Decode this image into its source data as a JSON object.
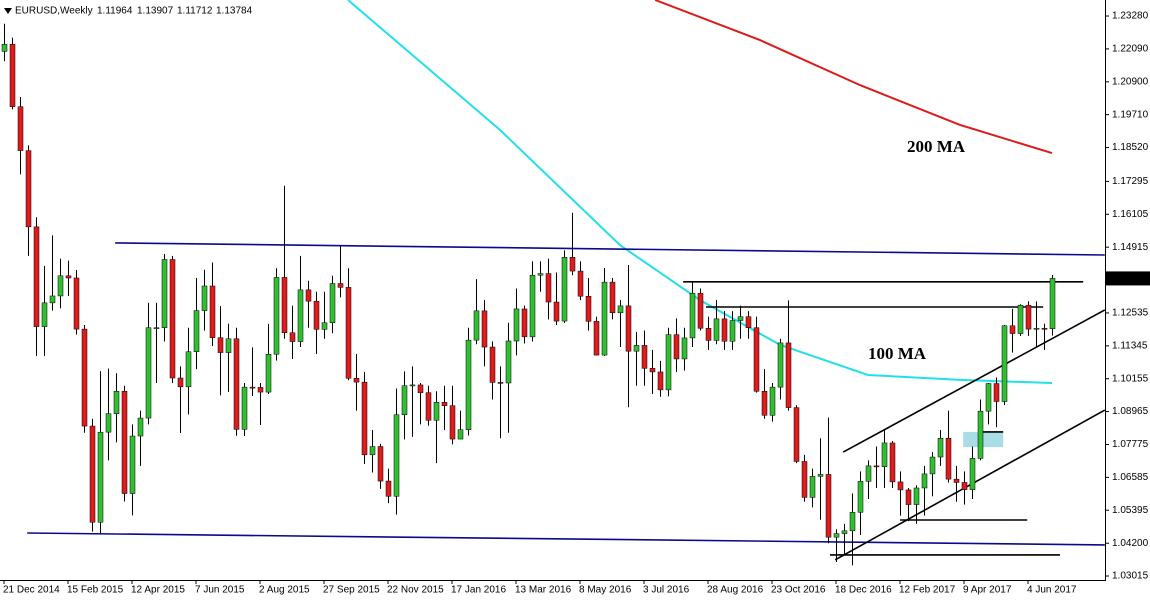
{
  "chart_data": {
    "type": "candlestick",
    "title": "EURUSD,Weekly",
    "up_color": "#2fbf2f",
    "down_color": "#e01b1b",
    "wick_color": "#000000",
    "categories": [
      "21 Dec 2014",
      null,
      null,
      null,
      null,
      null,
      null,
      null,
      "15 Feb 2015",
      null,
      null,
      null,
      null,
      null,
      null,
      null,
      "12 Apr 2015",
      null,
      null,
      null,
      null,
      null,
      null,
      null,
      "7 Jun 2015",
      null,
      null,
      null,
      null,
      null,
      null,
      null,
      "2 Aug 2015",
      null,
      null,
      null,
      null,
      null,
      null,
      null,
      "27 Sep 2015",
      null,
      null,
      null,
      null,
      null,
      null,
      null,
      "22 Nov 2015",
      null,
      null,
      null,
      null,
      null,
      null,
      null,
      "17 Jan 2016",
      null,
      null,
      null,
      null,
      null,
      null,
      null,
      "13 Mar 2016",
      null,
      null,
      null,
      null,
      null,
      null,
      null,
      "8 May 2016",
      null,
      null,
      null,
      null,
      null,
      null,
      null,
      "3 Jul 2016",
      null,
      null,
      null,
      null,
      null,
      null,
      null,
      "28 Aug 2016",
      null,
      null,
      null,
      null,
      null,
      null,
      null,
      "23 Oct 2016",
      null,
      null,
      null,
      null,
      null,
      null,
      null,
      "18 Dec 2016",
      null,
      null,
      null,
      null,
      null,
      null,
      null,
      "12 Feb 2017",
      null,
      null,
      null,
      null,
      null,
      null,
      null,
      "9 Apr 2017",
      null,
      null,
      null,
      null,
      null,
      null,
      null,
      "4 Jun 2017",
      null,
      null,
      null
    ],
    "open": [
      1.22,
      1.2226,
      1.2,
      1.1841,
      1.1565,
      1.1204,
      1.129,
      1.1315,
      1.1388,
      1.138,
      1.1195,
      1.0844,
      1.0496,
      1.0822,
      1.0889,
      1.097,
      1.06,
      1.0808,
      1.0873,
      1.12,
      1.12,
      1.1447,
      1.1018,
      1.0986,
      1.1113,
      1.1262,
      1.1351,
      1.1164,
      1.111,
      1.116,
      1.0832,
      1.0985,
      1.0984,
      1.0967,
      1.1104,
      1.1382,
      1.1182,
      1.115,
      1.1337,
      1.1296,
      1.1194,
      1.1218,
      1.136,
      1.1346,
      1.1017,
      1.1003,
      1.074,
      1.077,
      1.0645,
      1.059,
      1.0885,
      1.099,
      1.0993,
      1.0965,
      1.0865,
      1.093,
      1.0918,
      1.0797,
      1.0831,
      1.1155,
      1.1261,
      1.113,
      1.1002,
      1.1,
      1.1152,
      1.1268,
      1.1167,
      1.139,
      1.1396,
      1.1293,
      1.1224,
      1.1455,
      1.1405,
      1.1314,
      1.1223,
      1.1101,
      1.1365,
      1.1254,
      1.1279,
      1.1115,
      1.1136,
      1.1053,
      1.104,
      1.0975,
      1.1175,
      1.1087,
      1.1163,
      1.1325,
      1.1198,
      1.1154,
      1.1232,
      1.1151,
      1.1226,
      1.124,
      1.12,
      1.097,
      1.0883,
      1.0985,
      1.1145,
      1.0911,
      1.0716,
      1.0586,
      1.0662,
      1.0669,
      1.0442,
      1.0455,
      1.0465,
      1.0532,
      1.0644,
      1.07,
      1.0697,
      1.0783,
      1.0642,
      1.0613,
      1.056,
      1.062,
      1.0671,
      1.0732,
      1.08,
      1.0652,
      1.064,
      1.0614,
      1.0727,
      1.0898,
      1.0998,
      1.0933,
      1.1207,
      1.1179,
      1.1281,
      1.1195,
      1.1198,
      1.11964
    ],
    "high": [
      1.23,
      1.225,
      1.2035,
      1.186,
      1.16,
      1.1424,
      1.1534,
      1.145,
      1.1443,
      1.1409,
      1.121,
      1.087,
      1.1043,
      1.1052,
      1.1035,
      1.099,
      1.085,
      1.09,
      1.129,
      1.129,
      1.1467,
      1.146,
      1.106,
      1.12,
      1.138,
      1.141,
      1.1436,
      1.1278,
      1.1215,
      1.12,
      1.1,
      1.1129,
      1.1,
      1.1214,
      1.1415,
      1.1714,
      1.128,
      1.146,
      1.137,
      1.133,
      1.133,
      1.1388,
      1.1495,
      1.1415,
      1.1105,
      1.104,
      1.083,
      1.078,
      1.069,
      1.098,
      1.1042,
      1.106,
      1.1,
      1.099,
      1.097,
      1.099,
      1.099,
      1.09,
      1.12,
      1.1376,
      1.13,
      1.115,
      1.106,
      1.1218,
      1.1342,
      1.128,
      1.144,
      1.144,
      1.145,
      1.14,
      1.148,
      1.1616,
      1.144,
      1.138,
      1.124,
      1.1416,
      1.138,
      1.13,
      1.1427,
      1.1185,
      1.119,
      1.112,
      1.108,
      1.12,
      1.1234,
      1.12,
      1.1366,
      1.1342,
      1.124,
      1.13,
      1.126,
      1.126,
      1.128,
      1.126,
      1.124,
      1.105,
      1.1,
      1.116,
      1.1299,
      1.092,
      1.074,
      1.069,
      1.08,
      1.0875,
      1.047,
      1.049,
      1.06,
      1.068,
      1.072,
      1.077,
      1.083,
      1.079,
      1.068,
      1.062,
      1.063,
      1.07,
      1.075,
      1.083,
      1.09,
      1.07,
      1.068,
      1.077,
      1.094,
      1.1,
      1.102,
      1.121,
      1.1268,
      1.1285,
      1.1296,
      1.1295,
      1.1215,
      1.13907
    ],
    "low": [
      1.2165,
      1.199,
      1.1755,
      1.146,
      1.1098,
      1.1098,
      1.1262,
      1.127,
      1.1315,
      1.1175,
      1.082,
      1.0462,
      1.0457,
      1.072,
      1.0785,
      1.0571,
      1.0521,
      1.07,
      1.085,
      1.1,
      1.115,
      1.1,
      1.0819,
      1.0886,
      1.105,
      1.119,
      1.1134,
      1.0955,
      1.0968,
      1.0809,
      1.0808,
      1.0953,
      1.0848,
      1.096,
      1.1081,
      1.116,
      1.1087,
      1.113,
      1.12,
      1.1105,
      1.116,
      1.118,
      1.131,
      1.101,
      1.09,
      1.0707,
      1.0676,
      1.0617,
      1.0565,
      1.0524,
      1.0796,
      1.0805,
      1.085,
      1.0845,
      1.071,
      1.083,
      1.0778,
      1.081,
      1.081,
      1.114,
      1.106,
      1.094,
      1.08,
      1.082,
      1.11,
      1.1143,
      1.115,
      1.133,
      1.123,
      1.121,
      1.1217,
      1.139,
      1.13,
      1.119,
      1.11,
      1.1098,
      1.123,
      1.113,
      1.0912,
      1.099,
      1.099,
      1.096,
      1.095,
      1.0952,
      1.104,
      1.1045,
      1.113,
      1.119,
      1.112,
      1.114,
      1.112,
      1.112,
      1.116,
      1.116,
      1.0965,
      1.087,
      1.086,
      1.094,
      1.09,
      1.071,
      1.057,
      1.055,
      1.0505,
      1.042,
      1.0352,
      1.038,
      1.034,
      1.045,
      1.058,
      1.062,
      1.062,
      1.062,
      1.052,
      1.05,
      1.049,
      1.052,
      1.059,
      1.07,
      1.064,
      1.057,
      1.056,
      1.058,
      1.072,
      1.085,
      1.084,
      1.092,
      1.111,
      1.117,
      1.117,
      1.113,
      1.112,
      1.11712
    ],
    "close": [
      1.2226,
      1.2,
      1.1841,
      1.1565,
      1.1204,
      1.129,
      1.1315,
      1.1388,
      1.138,
      1.1195,
      1.0844,
      1.0496,
      1.0822,
      1.0889,
      1.097,
      1.06,
      1.0808,
      1.0873,
      1.12,
      1.12,
      1.1447,
      1.1018,
      1.0986,
      1.1113,
      1.1262,
      1.1351,
      1.1164,
      1.111,
      1.116,
      1.0832,
      1.0985,
      1.0984,
      1.0967,
      1.1104,
      1.1382,
      1.1182,
      1.115,
      1.1337,
      1.1296,
      1.1194,
      1.1218,
      1.136,
      1.1346,
      1.1017,
      1.1003,
      1.074,
      1.077,
      1.0645,
      1.059,
      1.0885,
      1.099,
      1.0993,
      1.0965,
      1.0865,
      1.093,
      1.0918,
      1.0797,
      1.0831,
      1.1155,
      1.1261,
      1.113,
      1.1002,
      1.1,
      1.1152,
      1.1268,
      1.1167,
      1.139,
      1.1396,
      1.1293,
      1.1224,
      1.1455,
      1.1405,
      1.1314,
      1.1223,
      1.1101,
      1.1365,
      1.1254,
      1.1279,
      1.1115,
      1.1136,
      1.1053,
      1.104,
      1.0975,
      1.1175,
      1.1087,
      1.1163,
      1.1325,
      1.1198,
      1.1154,
      1.1232,
      1.1151,
      1.1226,
      1.124,
      1.12,
      1.097,
      1.0883,
      1.0985,
      1.1145,
      1.0911,
      1.0716,
      1.0586,
      1.0662,
      1.0669,
      1.0442,
      1.0455,
      1.0465,
      1.0532,
      1.0644,
      1.07,
      1.0697,
      1.0783,
      1.0642,
      1.0613,
      1.056,
      1.062,
      1.0671,
      1.0732,
      1.08,
      1.0652,
      1.064,
      1.0614,
      1.0727,
      1.0898,
      1.0998,
      1.0933,
      1.1207,
      1.1179,
      1.1281,
      1.1195,
      1.1198,
      1.11964,
      1.13784
    ],
    "series": [
      {
        "name": "100 MA",
        "color": "#22e0e8",
        "x": [
          43,
          62,
          77,
          87,
          97,
          108,
          119.5,
          131
        ],
        "values": [
          1.2386,
          1.1916,
          1.1499,
          1.13,
          1.1138,
          1.1029,
          1.1011,
          1.1
        ]
      },
      {
        "name": "200 MA",
        "color": "#dc1a1a",
        "x": [
          81.4,
          94.5,
          107,
          119.5,
          131
        ],
        "values": [
          1.2386,
          1.2241,
          1.2078,
          1.1934,
          1.1832
        ]
      }
    ],
    "lines": [
      {
        "color": "#0a0a8c",
        "x": [
          13.9,
          137.6
        ],
        "values": [
          1.1507,
          1.1463
        ]
      },
      {
        "color": "#0a0a8c",
        "x": [
          2.9,
          137.6
        ],
        "values": [
          1.0457,
          1.0414
        ]
      },
      {
        "color": "#000000",
        "x": [
          84.9,
          134.9
        ],
        "values": [
          1.1366,
          1.1366
        ]
      },
      {
        "color": "#000000",
        "x": [
          87.75,
          129.9
        ],
        "values": [
          1.1275,
          1.1275
        ]
      },
      {
        "color": "#000000",
        "x": [
          104.9,
          137.6
        ],
        "values": [
          1.075,
          1.1264
        ]
      },
      {
        "color": "#000000",
        "x": [
          103.9,
          137.6
        ],
        "values": [
          1.036,
          1.0902
        ]
      },
      {
        "color": "#000000",
        "x": [
          112,
          127.9
        ],
        "values": [
          1.0504,
          1.0504
        ]
      },
      {
        "color": "#000000",
        "x": [
          103.25,
          132
        ],
        "values": [
          1.0378,
          1.0378
        ]
      },
      {
        "color": "#000000",
        "x": [
          121.75,
          124.9
        ],
        "values": [
          1.0823,
          1.0823
        ]
      }
    ],
    "zones": [
      {
        "color": "#a8dde6",
        "x": [
          119.9,
          124.9
        ],
        "values": [
          1.0823,
          1.0768
        ]
      }
    ],
    "ylim": [
      1.0287,
      1.2386
    ],
    "yticks": [
      {
        "value": 1.2328,
        "label": "1.23280"
      },
      {
        "value": 1.2209,
        "label": "1.22090"
      },
      {
        "value": 1.209,
        "label": "1.20900"
      },
      {
        "value": 1.1971,
        "label": "1.19710"
      },
      {
        "value": 1.1852,
        "label": "1.18520"
      },
      1.17295,
      1.16105,
      1.14915,
      1.12535,
      1.11345,
      1.10155,
      1.08965,
      1.07775,
      1.06585,
      1.05395,
      {
        "value": 1.042,
        "label": "1.04200"
      },
      1.03015
    ]
  }
}
